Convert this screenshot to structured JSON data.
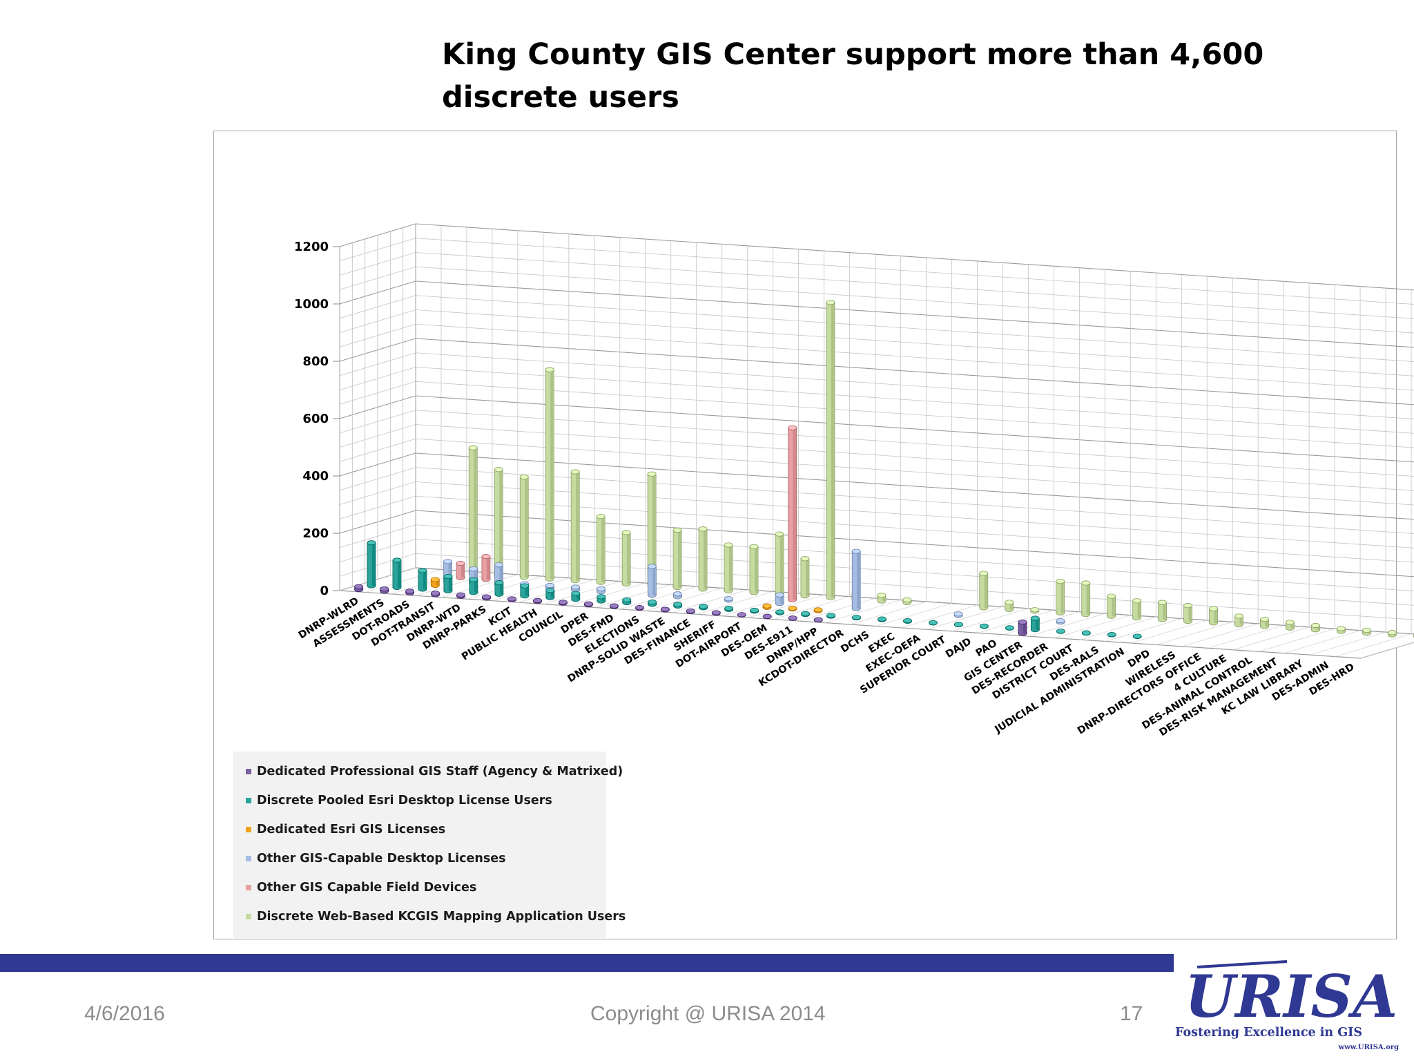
{
  "title": "King County GIS Center support more than 4,600 discrete users",
  "footer": {
    "date": "4/6/2016",
    "copyright": "Copyright @ URISA 2014",
    "page": "17"
  },
  "logo": {
    "mark": "URISA",
    "tagline": "Fostering Excellence in GIS",
    "url": "www.URISA.org"
  },
  "colors": {
    "Dedicated Professional GIS Staff (Agency & Matrixed)": "#7b5fa3",
    "Discrete Pooled Esri Desktop License Users": "#2aa39a",
    "Dedicated Esri GIS Licenses": "#f0a21f",
    "Other GIS-Capable Desktop Licenses": "#a6bde3",
    "Other GIS Capable Field Devices": "#e8a0a4",
    "Discrete Web-Based KCGIS Mapping Application Users": "#c6dba0",
    "footer_bar": "#2f3892"
  },
  "chart_data": {
    "type": "bar",
    "ylim": [
      0,
      1200
    ],
    "yticks": [
      "0",
      "200",
      "400",
      "600",
      "800",
      "1000",
      "1200"
    ],
    "grid": true,
    "legend_position": "bottom-left",
    "categories": [
      "DNRP-WLRD",
      "ASSESSMENTS",
      "DOT-ROADS",
      "DOT-TRANSIT",
      "DNRP-WTD",
      "DNRP-PARKS",
      "KCIT",
      "PUBLIC HEALTH",
      "COUNCIL",
      "DPER",
      "DES-FMD",
      "ELECTIONS",
      "DNRP-SOLID WASTE",
      "DES-FINANCE",
      "SHERIFF",
      "DOT-AIRPORT",
      "DES-OEM",
      "DES-E911",
      "DNRP/HPP",
      "KCDOT-DIRECTOR",
      "DCHS",
      "EXEC",
      "EXEC-OEFA",
      "SUPERIOR COURT",
      "DAJD",
      "PAO",
      "GIS CENTER",
      "DES-RECORDER",
      "DISTRICT COURT",
      "DES-RALS",
      "JUDICIAL ADMINISTRATION",
      "DPD",
      "WIRELESS",
      "DNRP-DIRECTORS OFFICE",
      "4 CULTURE",
      "DES-ANIMAL CONTROL",
      "DES-RISK MANAGEMENT",
      "KC LAW LIBRARY",
      "DES-ADMIN",
      "DES-HRD"
    ],
    "series": [
      {
        "name": "Dedicated Professional GIS Staff (Agency & Matrixed)",
        "values": [
          10,
          8,
          6,
          5,
          5,
          4,
          3,
          3,
          3,
          3,
          2,
          2,
          2,
          2,
          2,
          1,
          1,
          1,
          1,
          0,
          0,
          0,
          0,
          0,
          0,
          0,
          40,
          0,
          0,
          0,
          0,
          0,
          0,
          0,
          0,
          0,
          0,
          0,
          0,
          0
        ]
      },
      {
        "name": "Discrete Pooled Esri Desktop License Users",
        "values": [
          150,
          95,
          65,
          50,
          45,
          40,
          35,
          25,
          20,
          15,
          10,
          8,
          6,
          5,
          4,
          3,
          3,
          3,
          3,
          2,
          2,
          2,
          1,
          1,
          1,
          1,
          40,
          1,
          1,
          1,
          1,
          0,
          0,
          0,
          0,
          0,
          0,
          0,
          0,
          0
        ]
      },
      {
        "name": "Dedicated Esri GIS Licenses",
        "values": [
          0,
          0,
          20,
          0,
          0,
          0,
          0,
          0,
          0,
          0,
          0,
          0,
          0,
          0,
          0,
          5,
          3,
          3,
          0,
          0,
          0,
          0,
          0,
          0,
          0,
          0,
          0,
          0,
          0,
          0,
          0,
          0,
          0,
          0,
          0,
          0,
          0,
          0,
          0,
          0
        ]
      },
      {
        "name": "Other GIS-Capable Desktop Licenses",
        "values": [
          0,
          0,
          70,
          50,
          70,
          10,
          10,
          10,
          10,
          0,
          100,
          10,
          0,
          5,
          0,
          30,
          0,
          0,
          200,
          0,
          0,
          0,
          5,
          0,
          0,
          0,
          5,
          0,
          0,
          0,
          0,
          0,
          0,
          0,
          0,
          0,
          0,
          0,
          0,
          0
        ]
      },
      {
        "name": "Other GIS Capable Field Devices",
        "values": [
          0,
          0,
          50,
          80,
          0,
          0,
          0,
          0,
          0,
          0,
          0,
          0,
          0,
          0,
          0,
          600,
          0,
          0,
          0,
          0,
          0,
          0,
          0,
          0,
          0,
          0,
          0,
          0,
          0,
          0,
          0,
          0,
          0,
          0,
          0,
          0,
          0,
          0,
          0,
          0
        ]
      },
      {
        "name": "Discrete Web-Based KCGIS Mapping Application Users",
        "values": [
          0,
          0,
          440,
          370,
          350,
          730,
          380,
          230,
          180,
          390,
          200,
          210,
          160,
          160,
          210,
          130,
          1030,
          20,
          20,
          10,
          0,
          0,
          120,
          25,
          5,
          110,
          110,
          70,
          60,
          60,
          55,
          50,
          30,
          25,
          20,
          15,
          10,
          10,
          8,
          5
        ]
      }
    ]
  }
}
